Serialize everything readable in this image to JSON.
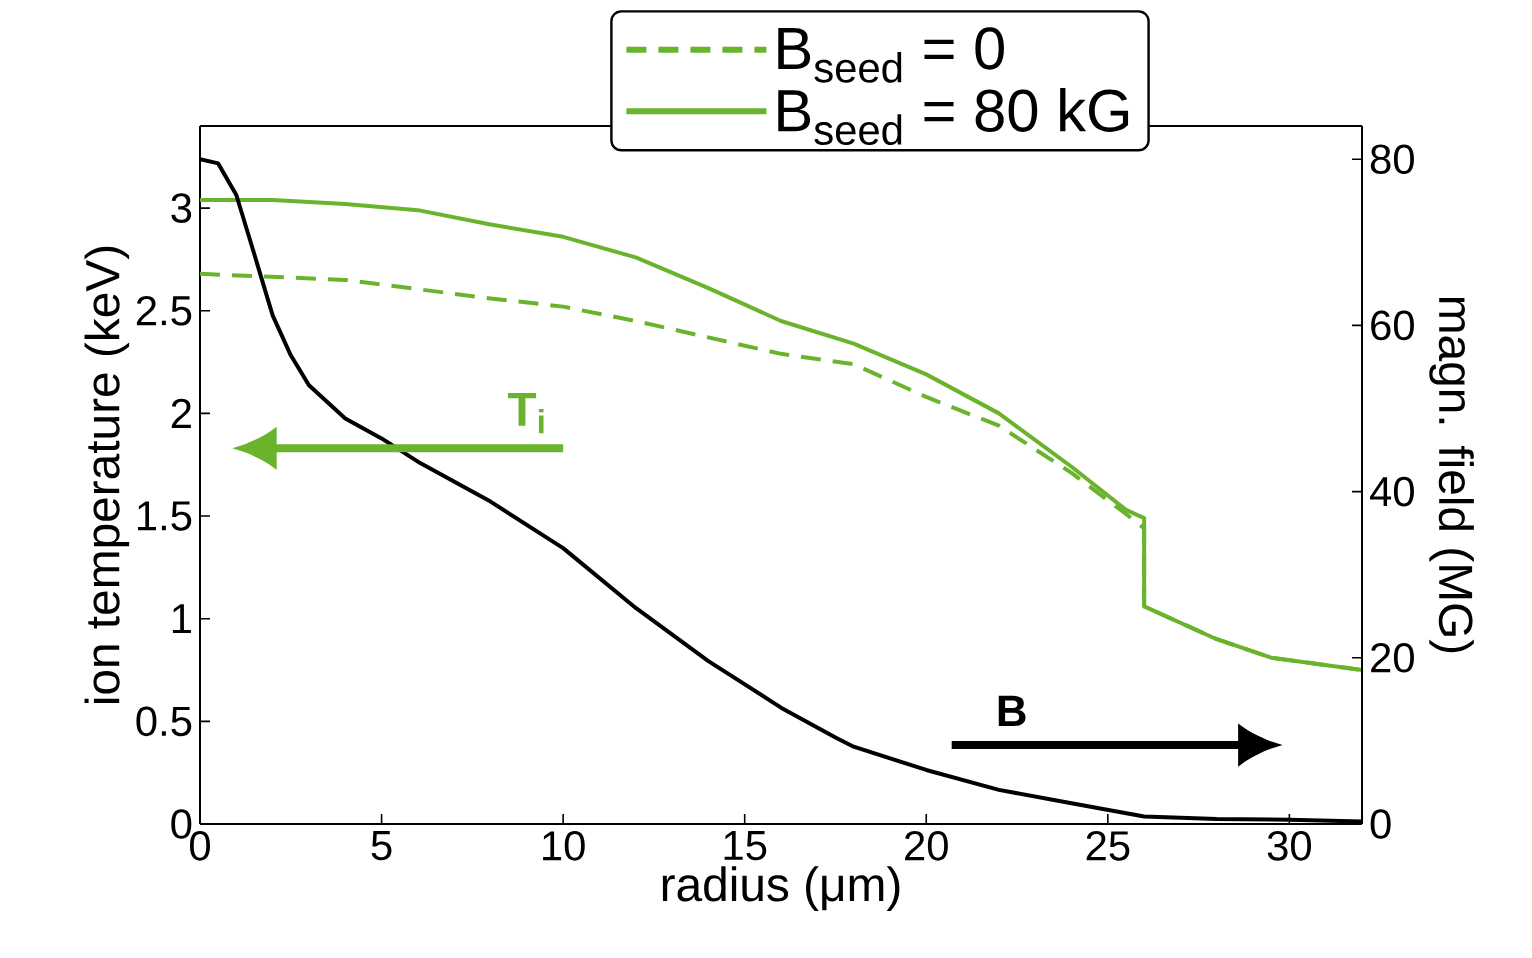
{
  "chart_data": {
    "type": "line",
    "xlabel": "radius (μm)",
    "ylabel": "ion temperature (keV)",
    "y2label": "magn. field (MG)",
    "xlim": [
      0,
      32
    ],
    "xticks": [
      0,
      5,
      10,
      15,
      20,
      25,
      30
    ],
    "ylim": [
      0,
      3.4
    ],
    "yticks": [
      0,
      0.5,
      1,
      1.5,
      2,
      2.5,
      3
    ],
    "y2lim": [
      0,
      84
    ],
    "y2ticks": [
      0,
      20,
      40,
      60,
      80
    ],
    "legend": "top",
    "annotations": [
      "T$_{i}$",
      "B"
    ],
    "series": [
      {
        "name": "B$_{seed}$ = 0",
        "color": "#6ab42d",
        "line_style": "dashed",
        "axis": "y",
        "x": [
          0,
          4,
          8,
          10,
          12,
          14,
          16,
          18,
          20,
          22,
          24,
          25.5,
          26,
          26,
          28,
          29.5,
          32
        ],
        "values": [
          2.68,
          2.65,
          2.56,
          2.52,
          2.45,
          2.37,
          2.29,
          2.24,
          2.08,
          1.94,
          1.71,
          1.51,
          1.44,
          1.06,
          0.9,
          0.81,
          0.75
        ]
      },
      {
        "name": "B$_{seed}$ = 80 kG",
        "color": "#6ab42d",
        "line_style": "solid",
        "axis": "y",
        "x": [
          0,
          2,
          4,
          6,
          8,
          10,
          12,
          14,
          16,
          18,
          20,
          22,
          24,
          25.5,
          26,
          26,
          28,
          29.5,
          32
        ],
        "values": [
          3.04,
          3.04,
          3.02,
          2.99,
          2.92,
          2.86,
          2.76,
          2.61,
          2.45,
          2.34,
          2.19,
          2.0,
          1.74,
          1.53,
          1.49,
          1.06,
          0.9,
          0.81,
          0.75
        ]
      },
      {
        "color": "#000000",
        "line_style": "solid",
        "axis": "y2",
        "x": [
          0,
          0.5,
          1,
          1.5,
          2,
          2.5,
          3,
          4,
          5,
          6,
          8,
          10,
          12,
          14,
          16,
          17.5,
          18,
          20,
          22,
          24,
          26,
          28,
          30,
          32
        ],
        "values": [
          80,
          79.5,
          75.7,
          68.5,
          61.2,
          56.4,
          52.8,
          48.8,
          46.4,
          43.6,
          38.8,
          33.2,
          26,
          19.6,
          14,
          10.4,
          9.3,
          6.5,
          4.1,
          2.5,
          0.9,
          0.6,
          0.5,
          0.3
        ]
      }
    ]
  }
}
